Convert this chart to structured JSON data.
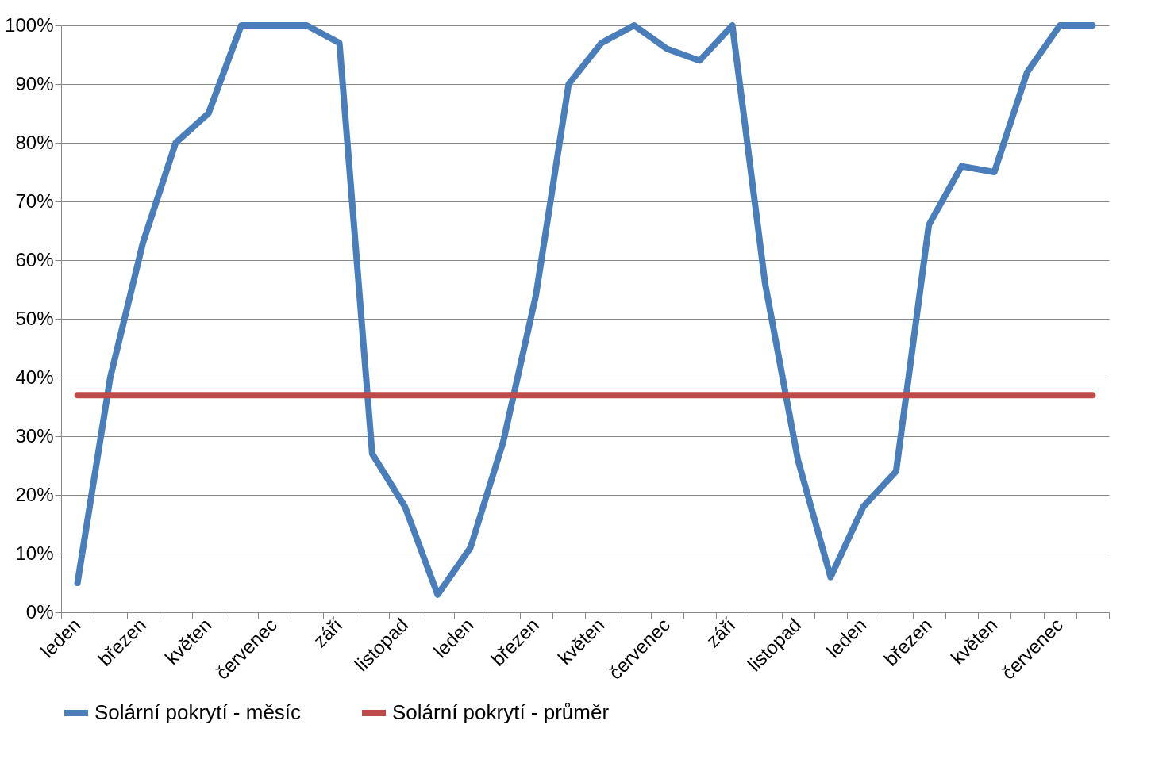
{
  "chart_data": {
    "type": "line",
    "categories": [
      "leden",
      null,
      "březen",
      null,
      "květen",
      null,
      "červenec",
      null,
      "září",
      null,
      "listopad",
      null,
      "leden",
      null,
      "březen",
      null,
      "květen",
      null,
      "červenec",
      null,
      "září",
      null,
      "listopad",
      null,
      "leden",
      null,
      "březen",
      null,
      "květen",
      null,
      "červenec",
      null
    ],
    "series": [
      {
        "name": "Solární pokrytí - měsíc",
        "color": "#4a7ebb",
        "values": [
          5,
          40,
          63,
          80,
          85,
          100,
          100,
          100,
          97,
          27,
          18,
          3,
          11,
          29,
          54,
          90,
          97,
          100,
          96,
          94,
          100,
          56,
          26,
          6,
          18,
          24,
          66,
          76,
          75,
          92,
          100,
          100
        ]
      },
      {
        "name": "Solární pokrytí - průměr",
        "color": "#be4b48",
        "values": [
          37,
          37,
          37,
          37,
          37,
          37,
          37,
          37,
          37,
          37,
          37,
          37,
          37,
          37,
          37,
          37,
          37,
          37,
          37,
          37,
          37,
          37,
          37,
          37,
          37,
          37,
          37,
          37,
          37,
          37,
          37,
          37
        ]
      }
    ],
    "ylim": [
      0,
      100
    ],
    "yticks": [
      {
        "value": 0,
        "label": "0%"
      },
      {
        "value": 10,
        "label": "10%"
      },
      {
        "value": 20,
        "label": "20%"
      },
      {
        "value": 30,
        "label": "30%"
      },
      {
        "value": 40,
        "label": "40%"
      },
      {
        "value": 50,
        "label": "50%"
      },
      {
        "value": 60,
        "label": "60%"
      },
      {
        "value": 70,
        "label": "70%"
      },
      {
        "value": 80,
        "label": "80%"
      },
      {
        "value": 90,
        "label": "90%"
      },
      {
        "value": 100,
        "label": "100%"
      }
    ],
    "grid": "y",
    "legend": "bottom",
    "marker": "none",
    "line_style": "solid"
  }
}
